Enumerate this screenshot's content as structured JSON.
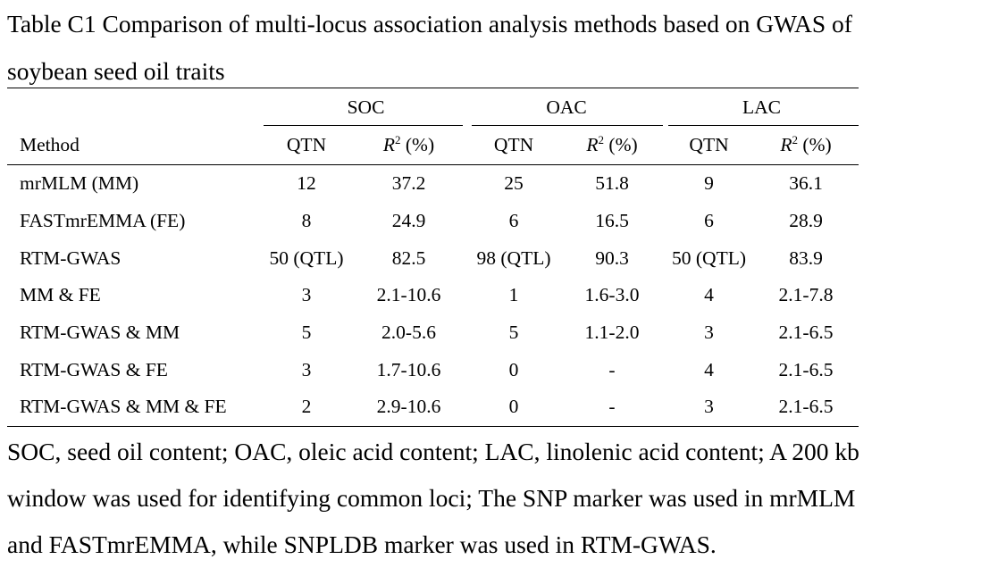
{
  "caption": {
    "line1": "Table C1 Comparison of multi-locus association analysis methods based on GWAS of",
    "line2": "soybean seed oil traits"
  },
  "table": {
    "groups": [
      "SOC",
      "OAC",
      "LAC"
    ],
    "method_header": "Method",
    "qtn_header": "QTN",
    "r2_symbol": "R",
    "r2_superscript": "2",
    "r2_unit": " (%)",
    "rows": [
      {
        "method": "mrMLM (MM)",
        "cells": [
          "12",
          "37.2",
          "25",
          "51.8",
          "9",
          "36.1"
        ]
      },
      {
        "method": "FASTmrEMMA (FE)",
        "cells": [
          "8",
          "24.9",
          "6",
          "16.5",
          "6",
          "28.9"
        ]
      },
      {
        "method": "RTM-GWAS",
        "cells": [
          "50 (QTL)",
          "82.5",
          "98 (QTL)",
          "90.3",
          "50 (QTL)",
          "83.9"
        ]
      },
      {
        "method": "MM & FE",
        "cells": [
          "3",
          "2.1-10.6",
          "1",
          "1.6-3.0",
          "4",
          "2.1-7.8"
        ]
      },
      {
        "method": "RTM-GWAS & MM",
        "cells": [
          "5",
          "2.0-5.6",
          "5",
          "1.1-2.0",
          "3",
          "2.1-6.5"
        ]
      },
      {
        "method": "RTM-GWAS & FE",
        "cells": [
          "3",
          "1.7-10.6",
          "0",
          "-",
          "4",
          "2.1-6.5"
        ]
      },
      {
        "method": "RTM-GWAS & MM & FE",
        "cells": [
          "2",
          "2.9-10.6",
          "0",
          "-",
          "3",
          "2.1-6.5"
        ]
      }
    ]
  },
  "footnote": {
    "line1": "SOC, seed oil content; OAC, oleic acid content; LAC, linolenic acid content; A 200 kb",
    "line2": "window was used for identifying common loci; The SNP marker was used in mrMLM",
    "line3": "and FASTmrEMMA, while SNPLDB marker was used in RTM-GWAS."
  }
}
